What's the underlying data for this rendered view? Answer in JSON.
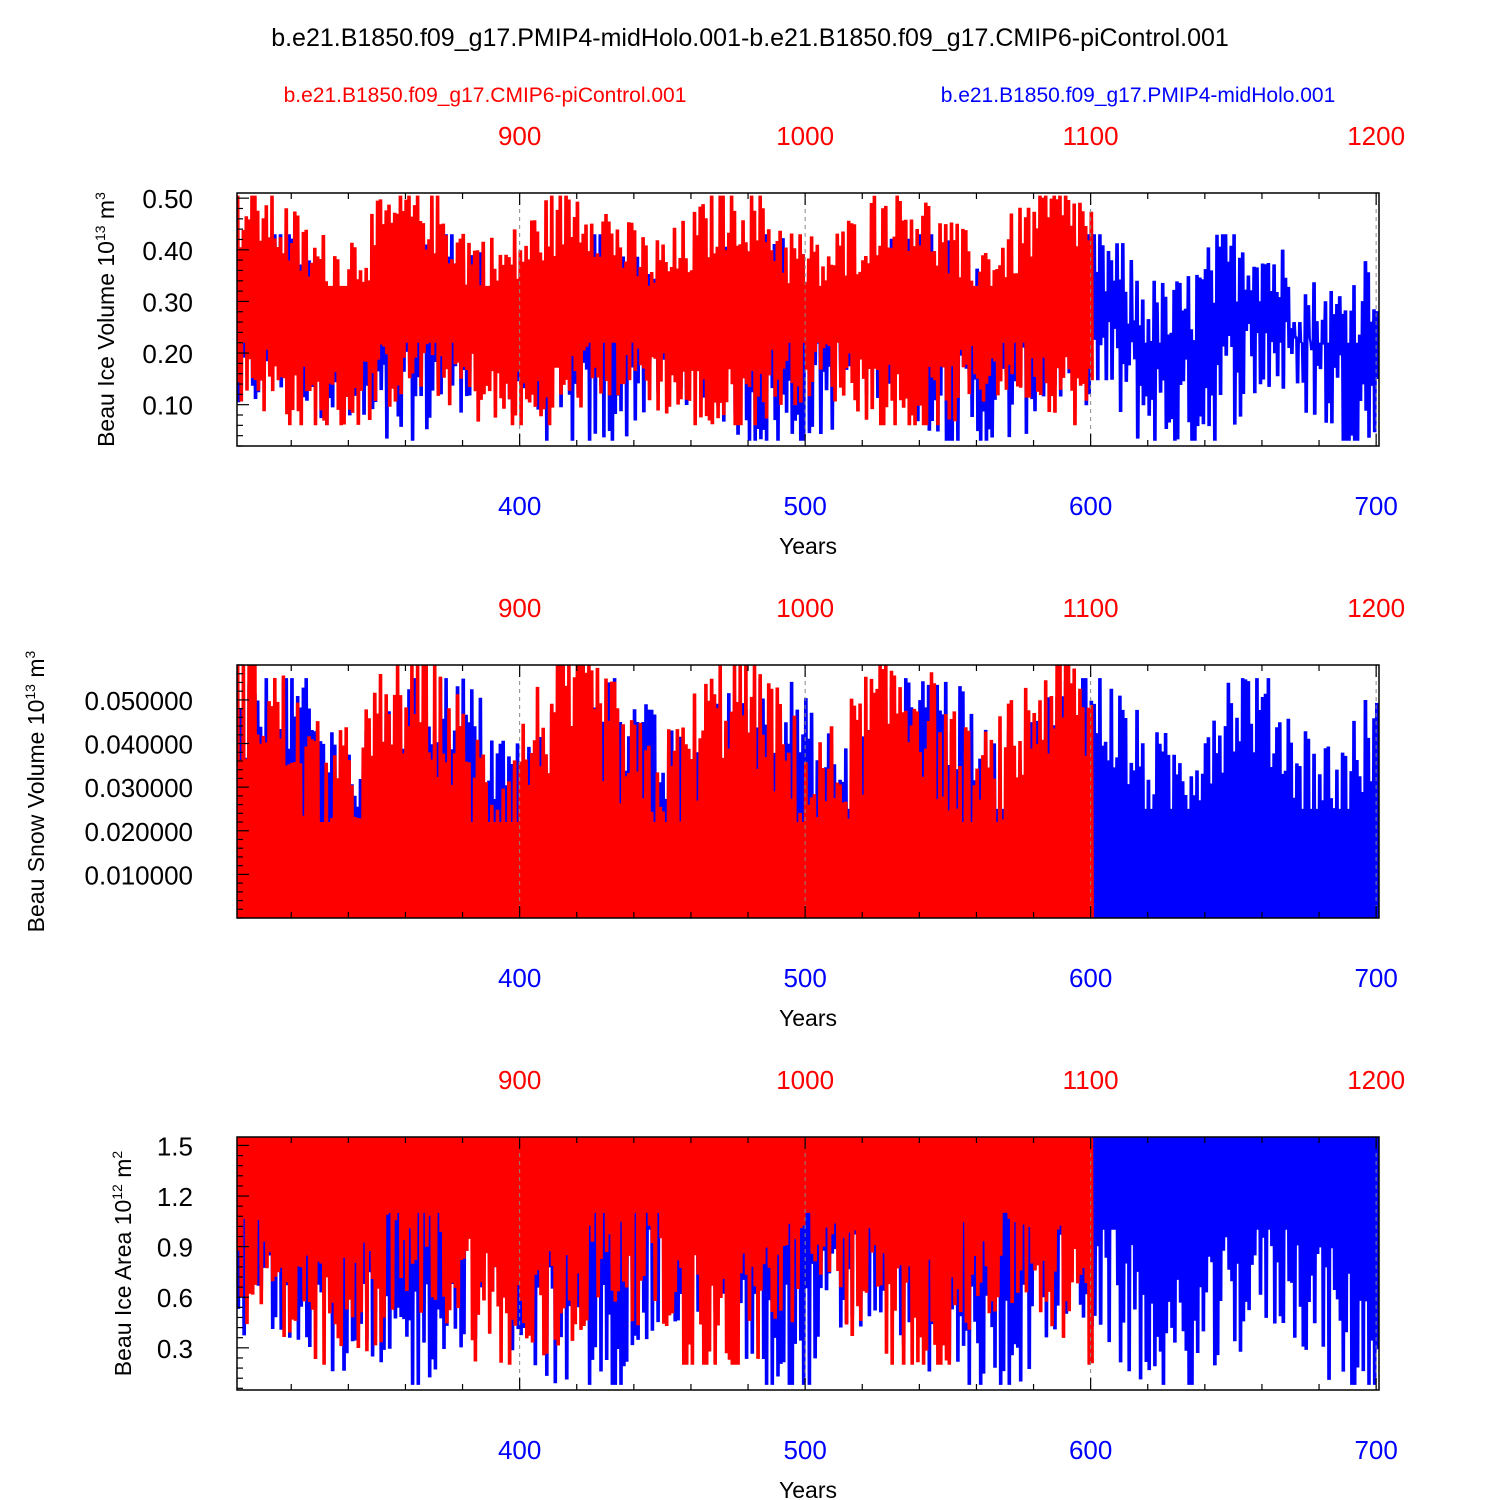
{
  "main_title": "b.e21.B1850.f09_g17.PMIP4-midHolo.001-b.e21.B1850.f09_g17.CMIP6-piControl.001",
  "legend": {
    "control_label": "b.e21.B1850.f09_g17.CMIP6-piControl.001",
    "midholo_label": "b.e21.B1850.f09_g17.PMIP4-midHolo.001"
  },
  "colors": {
    "control": "#ff0000",
    "midholo": "#0000ff",
    "axis": "#000000",
    "grid": "#888888"
  },
  "chart_data": [
    {
      "type": "line",
      "panel": "ice-volume",
      "ylabel": {
        "main": "Beau Ice Volume 10",
        "sup1": "13",
        "mid": " m",
        "sup2": "3"
      },
      "xlabel": "Years",
      "ylim": [
        0.02,
        0.51
      ],
      "yticks": [
        0.1,
        0.2,
        0.3,
        0.4,
        0.5
      ],
      "ytick_labels": [
        "0.10",
        "0.20",
        "0.30",
        "0.40",
        "0.50"
      ],
      "bottom_axis": {
        "range": [
          301,
          701
        ],
        "ticks": [
          400,
          500,
          600,
          700
        ],
        "tick_labels": [
          "400",
          "500",
          "600",
          "700"
        ]
      },
      "top_axis": {
        "range": [
          801,
          1201
        ],
        "ticks": [
          900,
          1000,
          1100,
          1200
        ],
        "tick_labels": [
          "900",
          "1000",
          "1100",
          "1200"
        ]
      },
      "series": [
        {
          "name": "b.e21.B1850.f09_g17.PMIP4-midHolo.001",
          "color": "#0000ff",
          "x_range": [
            301,
            701
          ],
          "max_range": [
            0.22,
            0.43
          ],
          "min_range": [
            0.03,
            0.26
          ]
        },
        {
          "name": "b.e21.B1850.f09_g17.CMIP6-piControl.001",
          "color": "#ff0000",
          "x_range": [
            301,
            601
          ],
          "max_range": [
            0.33,
            0.505
          ],
          "min_range": [
            0.06,
            0.22
          ]
        }
      ]
    },
    {
      "type": "line",
      "panel": "snow-volume",
      "ylabel": {
        "main": "Beau Snow Volume 10",
        "sup1": "13",
        "mid": " m",
        "sup2": "3"
      },
      "xlabel": "Years",
      "ylim": [
        0.0,
        0.058
      ],
      "yticks": [
        0.01,
        0.02,
        0.03,
        0.04,
        0.05
      ],
      "ytick_labels": [
        "0.010000",
        "0.020000",
        "0.030000",
        "0.040000",
        "0.050000"
      ],
      "bottom_axis": {
        "range": [
          301,
          701
        ],
        "ticks": [
          400,
          500,
          600,
          700
        ],
        "tick_labels": [
          "400",
          "500",
          "600",
          "700"
        ]
      },
      "top_axis": {
        "range": [
          801,
          1201
        ],
        "ticks": [
          900,
          1000,
          1100,
          1200
        ],
        "tick_labels": [
          "900",
          "1000",
          "1100",
          "1200"
        ]
      },
      "series": [
        {
          "name": "b.e21.B1850.f09_g17.PMIP4-midHolo.001",
          "color": "#0000ff",
          "x_range": [
            301,
            701
          ],
          "max_range": [
            0.025,
            0.055
          ],
          "min_range": [
            0.0,
            0.0
          ]
        },
        {
          "name": "b.e21.B1850.f09_g17.CMIP6-piControl.001",
          "color": "#ff0000",
          "x_range": [
            301,
            601
          ],
          "max_range": [
            0.022,
            0.058
          ],
          "min_range": [
            0.0,
            0.0
          ]
        }
      ]
    },
    {
      "type": "line",
      "panel": "ice-area",
      "ylabel": {
        "main": "Beau Ice Area 10",
        "sup1": "12",
        "mid": " m",
        "sup2": "2"
      },
      "xlabel": "Years",
      "ylim": [
        0.05,
        1.55
      ],
      "yticks": [
        0.3,
        0.6,
        0.9,
        1.2,
        1.5
      ],
      "ytick_labels": [
        "0.3",
        "0.6",
        "0.9",
        "1.2",
        "1.5"
      ],
      "bottom_axis": {
        "range": [
          301,
          701
        ],
        "ticks": [
          400,
          500,
          600,
          700
        ],
        "tick_labels": [
          "400",
          "500",
          "600",
          "700"
        ]
      },
      "top_axis": {
        "range": [
          801,
          1201
        ],
        "ticks": [
          900,
          1000,
          1100,
          1200
        ],
        "tick_labels": [
          "900",
          "1000",
          "1100",
          "1200"
        ]
      },
      "series": [
        {
          "name": "b.e21.B1850.f09_g17.PMIP4-midHolo.001",
          "color": "#0000ff",
          "x_range": [
            301,
            701
          ],
          "max_range": [
            1.55,
            1.55
          ],
          "min_range": [
            0.08,
            1.0
          ]
        },
        {
          "name": "b.e21.B1850.f09_g17.CMIP6-piControl.001",
          "color": "#ff0000",
          "x_range": [
            301,
            601
          ],
          "max_range": [
            1.55,
            1.55
          ],
          "min_range": [
            0.2,
            1.1
          ]
        }
      ]
    }
  ]
}
